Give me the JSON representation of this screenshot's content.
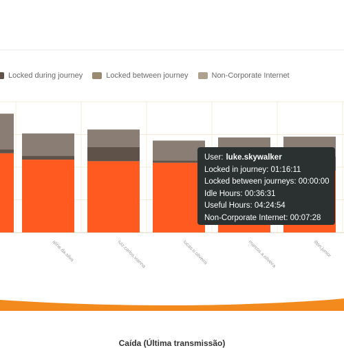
{
  "chart_data": {
    "type": "bar",
    "stacked": true,
    "categories": [
      "",
      "aline.da.silva",
      "luiz.carlos.vianna",
      "lucas.o.oliveira",
      "marcos.a.oliveira",
      "ilton.junior"
    ],
    "series": [
      {
        "name": "",
        "color": "#ff5a1f",
        "values": [
          100,
          92,
          90,
          88,
          75,
          78
        ]
      },
      {
        "name": "Locked during journey",
        "color": "#5f5349",
        "values": [
          5,
          5,
          18,
          3,
          20,
          18
        ]
      },
      {
        "name": "Locked between journey",
        "color": "#9a8a72",
        "values": [
          0,
          0,
          0,
          0,
          0,
          0
        ]
      },
      {
        "name": "Non-Corporate Internet",
        "color": "#8a7e74",
        "values": [
          45,
          28,
          22,
          25,
          25,
          25
        ]
      }
    ],
    "ylim": [
      0,
      165
    ],
    "grid": true,
    "legend_position": "top"
  },
  "legend": [
    {
      "label": "Locked during journey",
      "color": "#5f5349"
    },
    {
      "label": "Locked between journey",
      "color": "#9a8a72"
    },
    {
      "label": "Non-Corporate Internet",
      "color": "#aea18e"
    }
  ],
  "tooltip": {
    "user_label": "User:",
    "user_name": "luke.skywalker",
    "locked_in_journey": "Locked in journey: 01:16:11",
    "locked_between": "Locked between journeys: 00:00:00",
    "idle_hours": "Idle Hours: 00:36:31",
    "useful_hours": "Useful Hours: 04:24:54",
    "non_corporate": "Non-Corporate Internet: 00:07:28"
  },
  "bottom_chart": {
    "color": "#f28a1e"
  },
  "footer": {
    "title": "Caída (Última transmissão)"
  }
}
